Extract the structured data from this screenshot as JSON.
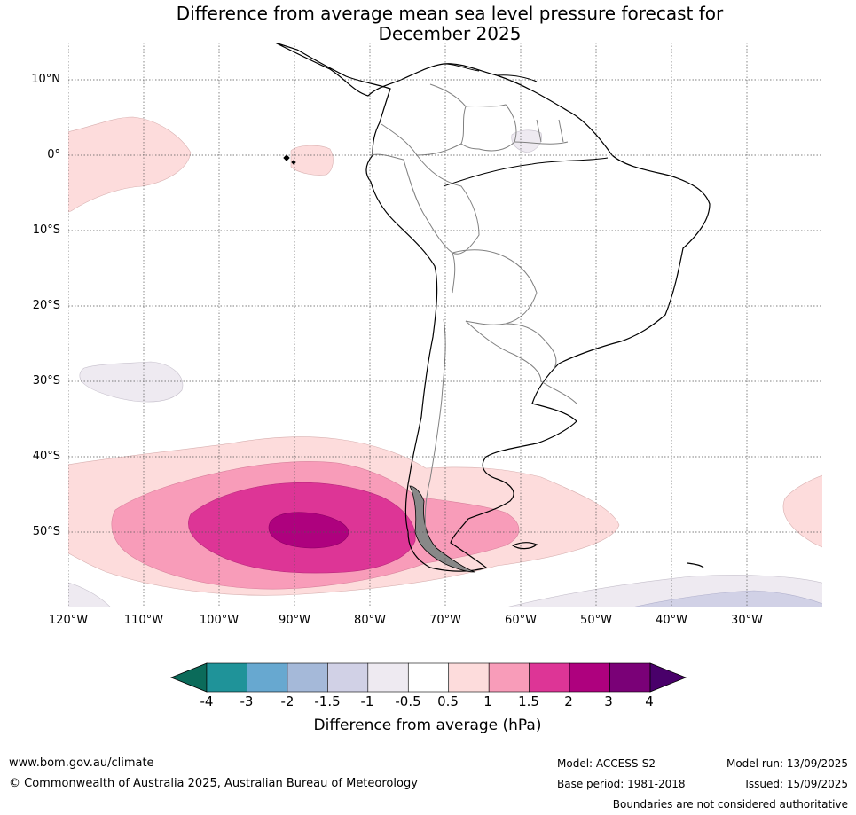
{
  "title_line1": "Difference from average mean sea level pressure forecast for",
  "title_line2": "December 2025",
  "lat_labels": [
    "10°N",
    "0°",
    "10°S",
    "20°S",
    "30°S",
    "40°S",
    "50°S"
  ],
  "lon_labels": [
    "120°W",
    "110°W",
    "100°W",
    "90°W",
    "80°W",
    "70°W",
    "60°W",
    "50°W",
    "40°W",
    "30°W"
  ],
  "colorbar": {
    "tick_labels": [
      "-4",
      "-3",
      "-2",
      "-1.5",
      "-1",
      "-0.5",
      "0.5",
      "1",
      "1.5",
      "2",
      "3",
      "4"
    ],
    "colors": [
      "#0b6b5a",
      "#1f9399",
      "#67a8d0",
      "#a5b9d9",
      "#d1d1e6",
      "#eeeaf1",
      "#ffffff",
      "#fddcdc",
      "#f89cb9",
      "#dd3596",
      "#ae017e",
      "#7a0177",
      "#49006a"
    ],
    "label": "Difference from average (hPa)"
  },
  "map": {
    "lon_range": [
      -120,
      -20
    ],
    "lat_range": [
      -60,
      15
    ],
    "border_color": "#808080",
    "coast_color": "#000000"
  },
  "footer": {
    "website": "www.bom.gov.au/climate",
    "copyright": "© Commonwealth of Australia 2025, Australian Bureau of Meteorology",
    "model": "Model: ACCESS-S2",
    "base_period": "Base period: 1981-2018",
    "model_run": "Model run: 13/09/2025",
    "issued": "Issued: 15/09/2025",
    "disclaimer": "Boundaries are not considered authoritative"
  }
}
